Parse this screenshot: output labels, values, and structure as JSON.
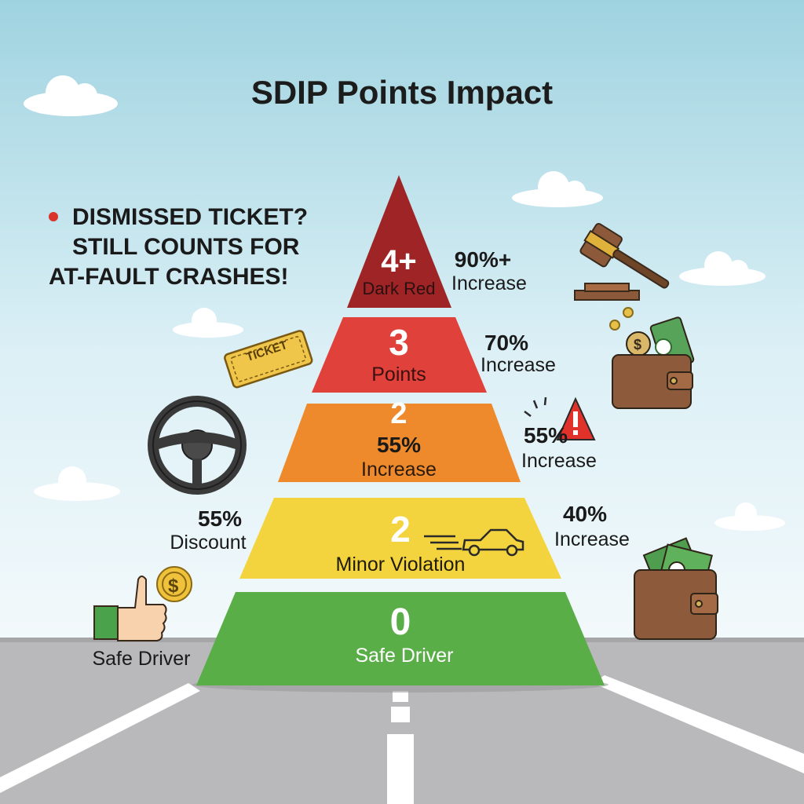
{
  "title": "SDIP Points Impact",
  "callout": {
    "lines": [
      "DISMISSED TICKET?",
      "STILL COUNTS FOR",
      "AT-FAULT CRASHES!"
    ],
    "bullet_color": "#d8342b"
  },
  "tiers": [
    {
      "points": "4+",
      "label": "Dark Red",
      "color": "#9e2426",
      "effect_value": "90%+",
      "effect_label": "Increase"
    },
    {
      "points": "3",
      "label": "Points",
      "color": "#e0413a",
      "effect_value": "70%",
      "effect_label": "Increase"
    },
    {
      "points": "2",
      "label_value": "55%",
      "label": "Increase",
      "color": "#ef8a2c",
      "effect_value": "55%",
      "effect_label": "Increase"
    },
    {
      "points": "2",
      "label": "Minor Violation",
      "color": "#f4d43e",
      "effect_value": "40%",
      "effect_label": "Increase"
    },
    {
      "points": "0",
      "label": "Safe Driver",
      "color": "#5aae48"
    }
  ],
  "discount": {
    "value": "55%",
    "label": "Discount"
  },
  "safe_driver_caption": "Safe Driver",
  "ticket_text": "TICKET",
  "icons": [
    "gavel-icon",
    "wallet-money-icon",
    "warning-icon",
    "steering-wheel-icon",
    "ticket-icon",
    "speeding-car-icon",
    "thumbs-up-coin-icon",
    "money-wallet-icon"
  ],
  "colors": {
    "sky_top": "#9fd3e0",
    "sky_bottom": "#f1f8fb",
    "road": "#b9b9bb"
  }
}
